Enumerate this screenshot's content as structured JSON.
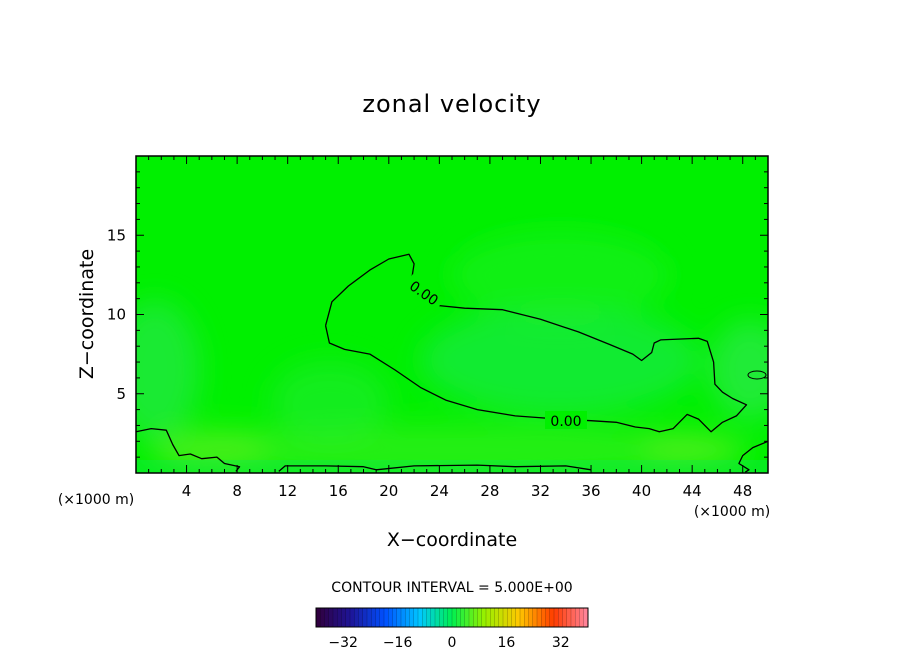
{
  "chart_data": {
    "type": "contour",
    "title": "zonal velocity",
    "xlabel": "X−coordinate",
    "ylabel": "Z−coordinate",
    "x_unit_left": "(×1000 m)",
    "x_unit_right": "(×1000 m)",
    "xlim": [
      0,
      50
    ],
    "ylim": [
      0,
      20
    ],
    "xticks": [
      4,
      8,
      12,
      16,
      20,
      24,
      28,
      32,
      36,
      40,
      44,
      48
    ],
    "yticks": [
      5,
      10,
      15
    ],
    "contour_interval_text": "CONTOUR INTERVAL = 5.000E+00",
    "contour_levels": [
      {
        "value": 0,
        "label": "0.00"
      },
      {
        "value": 0,
        "label": "0.00"
      }
    ],
    "zero_contour_main": [
      [
        15,
        9.3
      ],
      [
        15.5,
        10.8
      ],
      [
        16.8,
        11.8
      ],
      [
        18.5,
        12.8
      ],
      [
        20,
        13.5
      ],
      [
        21.6,
        13.8
      ],
      [
        22,
        13.2
      ],
      [
        21.8,
        12.2
      ],
      [
        22.5,
        11.2
      ],
      [
        23.5,
        10.6
      ],
      [
        26,
        10.4
      ],
      [
        29,
        10.3
      ],
      [
        32,
        9.7
      ],
      [
        35,
        8.9
      ],
      [
        37.5,
        8.1
      ],
      [
        39.3,
        7.5
      ],
      [
        40,
        7.1
      ],
      [
        40.8,
        7.6
      ],
      [
        41,
        8.2
      ],
      [
        41.5,
        8.4
      ],
      [
        44.5,
        8.5
      ],
      [
        45.2,
        8.3
      ],
      [
        45.7,
        7.0
      ],
      [
        45.8,
        5.6
      ],
      [
        46.4,
        5.1
      ],
      [
        47.2,
        4.7
      ],
      [
        48.3,
        4.3
      ],
      [
        47.5,
        3.6
      ],
      [
        46.4,
        3.2
      ],
      [
        45.5,
        2.6
      ],
      [
        44.5,
        3.4
      ],
      [
        43.6,
        3.7
      ],
      [
        42.5,
        2.8
      ],
      [
        41.4,
        2.6
      ],
      [
        40.6,
        2.8
      ],
      [
        39.5,
        2.9
      ],
      [
        38,
        3.2
      ],
      [
        36,
        3.3
      ],
      [
        33.5,
        3.4
      ],
      [
        30,
        3.6
      ],
      [
        27,
        4.0
      ],
      [
        24.5,
        4.6
      ],
      [
        22.5,
        5.4
      ],
      [
        20.5,
        6.5
      ],
      [
        18.5,
        7.5
      ],
      [
        16.5,
        7.8
      ],
      [
        15.3,
        8.2
      ],
      [
        15,
        9.3
      ]
    ],
    "zero_contour_left": [
      [
        0,
        2.6
      ],
      [
        1.2,
        2.8
      ],
      [
        2.4,
        2.7
      ],
      [
        2.9,
        1.8
      ],
      [
        3.4,
        1.1
      ],
      [
        4.3,
        1.2
      ],
      [
        5.2,
        0.9
      ],
      [
        6.4,
        1.0
      ],
      [
        7,
        0.6
      ],
      [
        8.2,
        0.4
      ],
      [
        7.9,
        0.1
      ]
    ],
    "zero_contour_bottom": [
      [
        11.3,
        0.1
      ],
      [
        11.8,
        0.45
      ],
      [
        15,
        0.45
      ],
      [
        18,
        0.4
      ],
      [
        19,
        0.2
      ],
      [
        22,
        0.45
      ],
      [
        27,
        0.5
      ],
      [
        30,
        0.4
      ],
      [
        34,
        0.45
      ],
      [
        36,
        0.2
      ]
    ],
    "zero_contour_right": [
      [
        50,
        2.0
      ],
      [
        48.8,
        1.6
      ],
      [
        48,
        1.1
      ],
      [
        47.7,
        0.6
      ],
      [
        48.5,
        0.2
      ],
      [
        48.2,
        0.05
      ]
    ],
    "colorbar": {
      "min": -40,
      "max": 40,
      "ticks": [
        -32,
        -16,
        0,
        16,
        32
      ],
      "tick_labels": [
        "−32",
        "−16",
        "0",
        "16",
        "32"
      ]
    },
    "field_color": "#00f000"
  }
}
